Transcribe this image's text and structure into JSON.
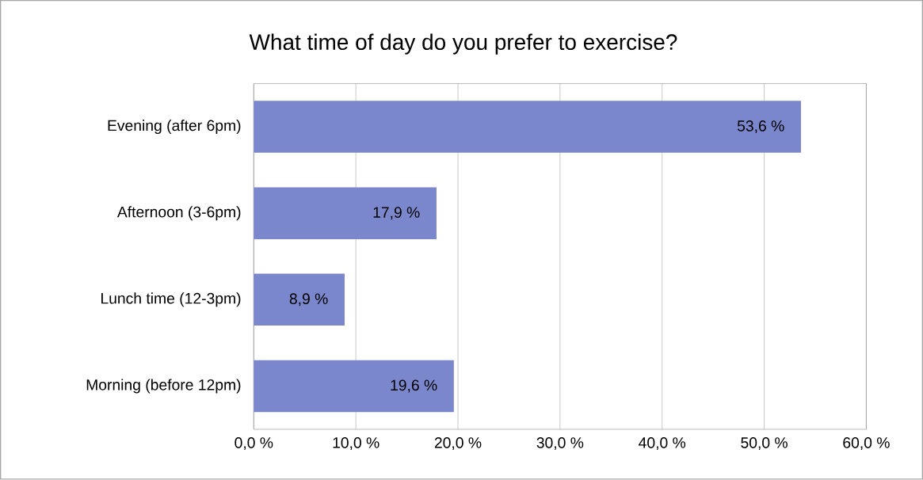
{
  "chart_data": {
    "type": "bar",
    "orientation": "horizontal",
    "title": "What time of day do you prefer to exercise?",
    "categories": [
      "Evening (after 6pm)",
      "Afternoon (3-6pm)",
      "Lunch time (12-3pm)",
      "Morning (before 12pm)"
    ],
    "values": [
      53.6,
      17.9,
      8.9,
      19.6
    ],
    "value_labels": [
      "53,6 %",
      "17,9 %",
      "8,9 %",
      "19,6 %"
    ],
    "color": "#7b87cd",
    "xlim": [
      0,
      60
    ],
    "xticks": [
      {
        "value": 0,
        "label": "0,0 %"
      },
      {
        "value": 10,
        "label": "10,0 %"
      },
      {
        "value": 20,
        "label": "20,0 %"
      },
      {
        "value": 30,
        "label": "30,0 %"
      },
      {
        "value": 40,
        "label": "40,0 %"
      },
      {
        "value": 50,
        "label": "50,0 %"
      },
      {
        "value": 60,
        "label": "60,0 %"
      }
    ],
    "grid": "x"
  }
}
